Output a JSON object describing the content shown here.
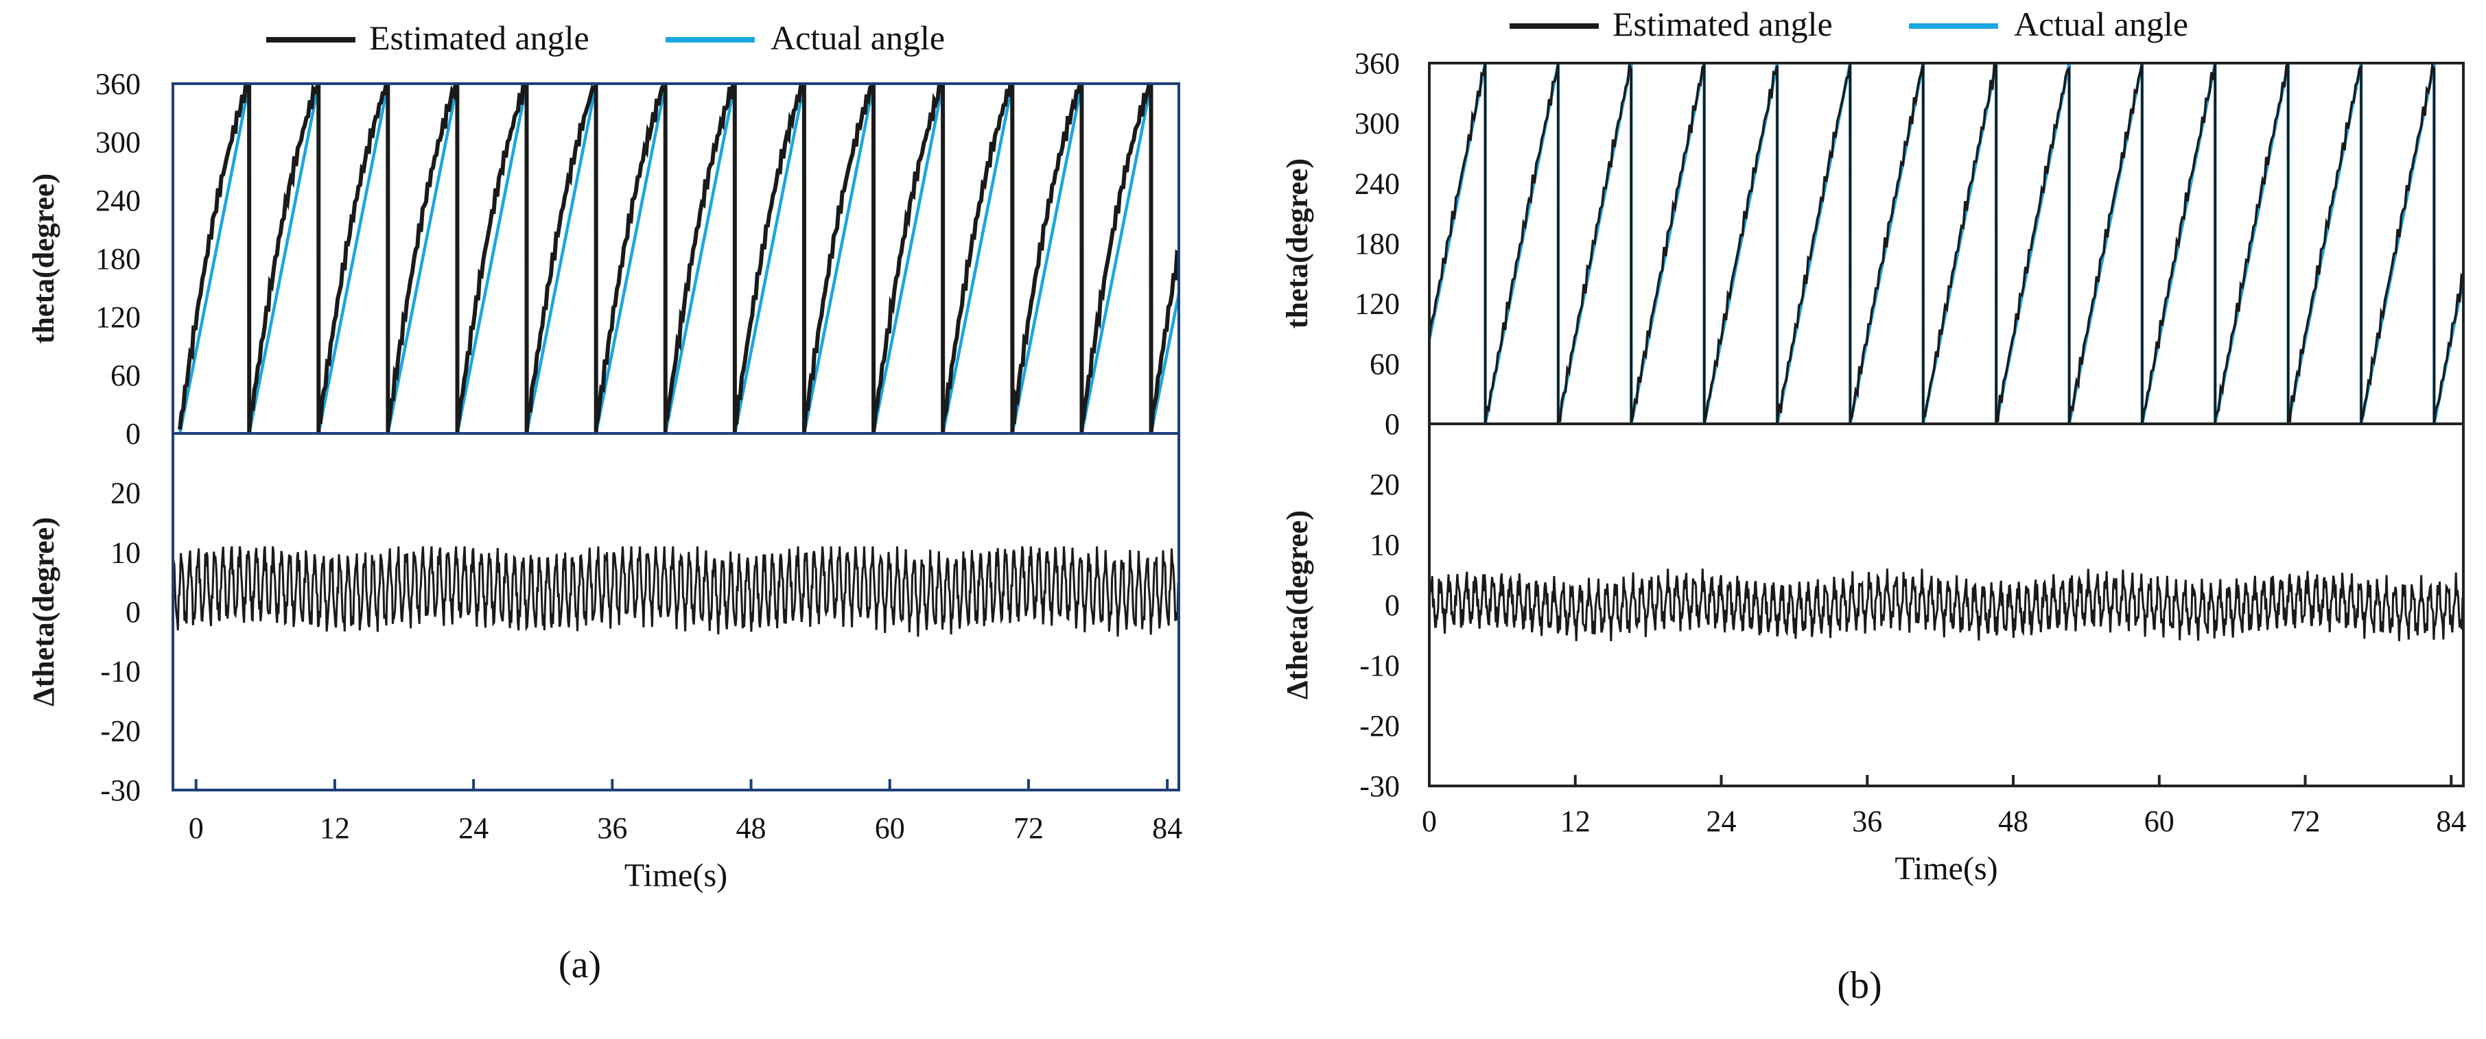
{
  "colors": {
    "estimated": "#1a1a1a",
    "actual": "#1aa7e0",
    "frame_a": "#1f3f7a",
    "frame_b": "#222222"
  },
  "chart_data": [
    {
      "type": "line",
      "panel_label": "a",
      "legend": [
        "Estimated angle",
        "Actual angle"
      ],
      "xlabel": "Time(s)",
      "xlim": [
        -2,
        85
      ],
      "xticks": [
        "0",
        "12",
        "24",
        "36",
        "48",
        "60",
        "72",
        "84"
      ],
      "top": {
        "ylabel": "theta(degree)",
        "ylim": [
          0,
          360
        ],
        "yticks": [
          "0",
          "60",
          "120",
          "180",
          "240",
          "300",
          "360"
        ],
        "sawtooth_period_s": 6,
        "sawtooth_first_wrap_s": 4.6,
        "estimated_lead_deg": 40,
        "series": [
          {
            "name": "Estimated angle",
            "description": "sawtooth 0-360 deg, reaches wrap earlier than actual"
          },
          {
            "name": "Actual angle",
            "description": "linear sawtooth 0-360 deg, wrap every 6 s"
          }
        ]
      },
      "bottom": {
        "ylabel": "Δtheta(degree)",
        "ylim": [
          -30,
          30
        ],
        "yticks": [
          "-30",
          "-20",
          "-10",
          "0",
          "10",
          "20"
        ],
        "error_mean_deg": 4,
        "error_amplitude_deg": 5.5,
        "error_min_deg": -6,
        "error_max_deg": 11
      }
    },
    {
      "type": "line",
      "panel_label": "b",
      "legend": [
        "Estimated angle",
        "Actual angle"
      ],
      "xlabel": "Time(s)",
      "xlim": [
        0,
        85
      ],
      "xticks": [
        "0",
        "12",
        "24",
        "36",
        "48",
        "60",
        "72",
        "84"
      ],
      "top": {
        "ylabel": "theta(degree)",
        "ylim": [
          0,
          360
        ],
        "yticks": [
          "0",
          "60",
          "120",
          "180",
          "240",
          "300",
          "360"
        ],
        "sawtooth_period_s": 6,
        "sawtooth_first_wrap_s": 4.6,
        "estimated_lead_deg": 5,
        "series": [
          {
            "name": "Estimated angle",
            "description": "sawtooth 0-360 deg, closely tracking actual"
          },
          {
            "name": "Actual angle",
            "description": "linear sawtooth 0-360 deg, wrap every 6 s"
          }
        ]
      },
      "bottom": {
        "ylabel": "Δtheta(degree)",
        "ylim": [
          -30,
          30
        ],
        "yticks": [
          "-30",
          "-20",
          "-10",
          "0",
          "10",
          "20"
        ],
        "error_mean_deg": 0,
        "error_amplitude_deg": 3.5,
        "error_min_deg": -6,
        "error_max_deg": 6
      }
    }
  ],
  "captions": {
    "a": "(a)",
    "b": "(b)"
  }
}
